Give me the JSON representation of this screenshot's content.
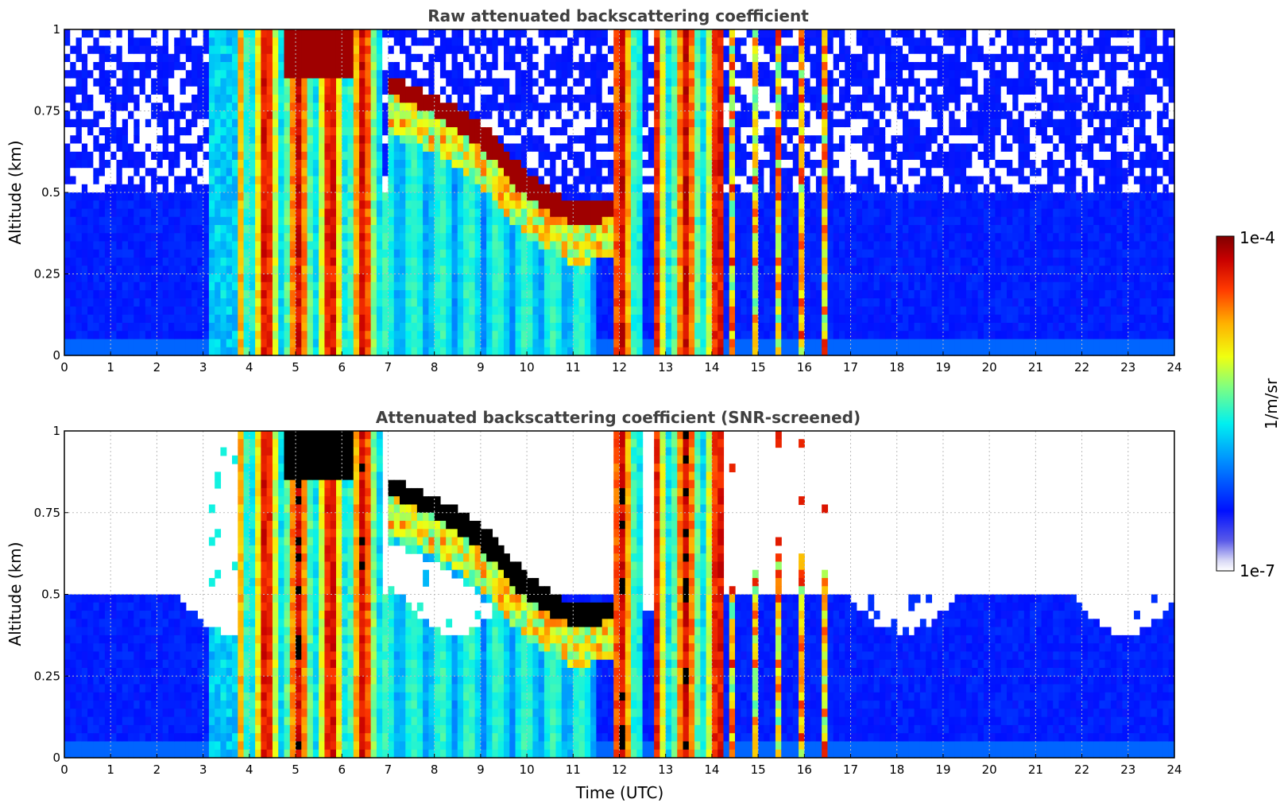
{
  "chart_data": [
    {
      "type": "heatmap",
      "title": "Raw attenuated backscattering coefficient",
      "xlabel": "",
      "ylabel": "Altitude (km)",
      "xlim": [
        0,
        24
      ],
      "ylim": [
        0,
        1
      ],
      "x_ticks": [
        "0",
        "1",
        "2",
        "3",
        "4",
        "5",
        "6",
        "7",
        "8",
        "9",
        "10",
        "11",
        "12",
        "13",
        "14",
        "15",
        "16",
        "17",
        "18",
        "19",
        "20",
        "21",
        "22",
        "23",
        "24"
      ],
      "y_ticks": [
        "0",
        "0.25",
        "0.5",
        "0.75",
        "1"
      ],
      "grid": true,
      "screened": false,
      "features": {
        "boundary_layer_top_km": 0.5,
        "cloud_band": [
          {
            "t": 7.0,
            "base": 0.8,
            "top": 0.86
          },
          {
            "t": 8.0,
            "base": 0.74,
            "top": 0.8
          },
          {
            "t": 9.0,
            "base": 0.64,
            "top": 0.72
          },
          {
            "t": 10.0,
            "base": 0.48,
            "top": 0.56
          },
          {
            "t": 11.0,
            "base": 0.4,
            "top": 0.47
          },
          {
            "t": 12.0,
            "base": 0.42,
            "top": 0.48
          }
        ],
        "precipitation_periods": [
          [
            3.8,
            6.9
          ],
          [
            11.9,
            12.5
          ],
          [
            12.8,
            14.2
          ]
        ]
      }
    },
    {
      "type": "heatmap",
      "title": "Attenuated backscattering coefficient (SNR-screened)",
      "xlabel": "Time (UTC)",
      "ylabel": "Altitude (km)",
      "xlim": [
        0,
        24
      ],
      "ylim": [
        0,
        1
      ],
      "x_ticks": [
        "0",
        "1",
        "2",
        "3",
        "4",
        "5",
        "6",
        "7",
        "8",
        "9",
        "10",
        "11",
        "12",
        "13",
        "14",
        "15",
        "16",
        "17",
        "18",
        "19",
        "20",
        "21",
        "22",
        "23",
        "24"
      ],
      "y_ticks": [
        "0",
        "0.25",
        "0.5",
        "0.75",
        "1"
      ],
      "grid": true,
      "screened": true
    }
  ],
  "colorbar": {
    "label": "1/m/sr",
    "max_label": "1e-4",
    "min_label": "1e-7",
    "scale": "log",
    "colormap": "jet"
  }
}
